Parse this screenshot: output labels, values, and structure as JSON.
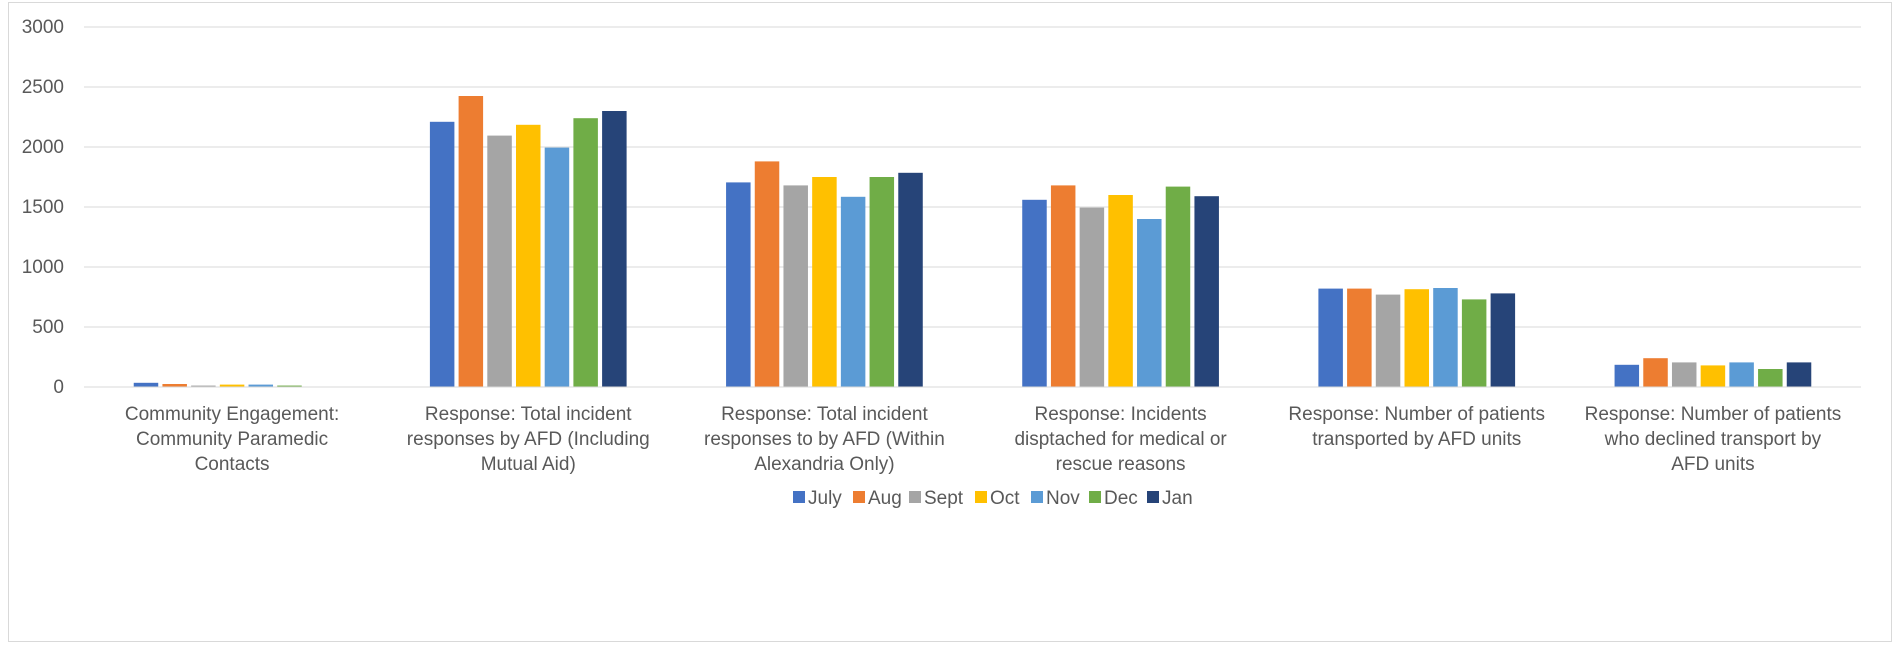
{
  "chart_data": {
    "type": "bar",
    "title": "",
    "xlabel": "",
    "ylabel": "",
    "ylim": [
      0,
      3000
    ],
    "yticks": [
      0,
      500,
      1000,
      1500,
      2000,
      2500,
      3000
    ],
    "grid": true,
    "legend_position": "bottom",
    "categories": [
      [
        "Community Engagement:",
        "Community Paramedic",
        "Contacts"
      ],
      [
        "Response: Total incident",
        "responses by AFD (Including",
        "Mutual Aid)"
      ],
      [
        "Response: Total incident",
        "responses to by AFD (Within",
        "Alexandria Only)"
      ],
      [
        "Response: Incidents",
        "disptached for medical or",
        "rescue reasons"
      ],
      [
        "Response: Number of patients",
        "transported by AFD units"
      ],
      [
        "Response: Number of patients",
        "who declined transport by",
        "AFD units"
      ]
    ],
    "series": [
      {
        "name": "July",
        "color": "#4472c4",
        "values": [
          35,
          2210,
          1705,
          1560,
          820,
          185
        ]
      },
      {
        "name": "Aug",
        "color": "#ed7d31",
        "values": [
          25,
          2425,
          1880,
          1680,
          820,
          240
        ]
      },
      {
        "name": "Sept",
        "color": "#a5a5a5",
        "values": [
          12,
          2095,
          1680,
          1495,
          770,
          205
        ]
      },
      {
        "name": "Oct",
        "color": "#ffc000",
        "values": [
          20,
          2185,
          1750,
          1600,
          815,
          180
        ]
      },
      {
        "name": "Nov",
        "color": "#5b9bd5",
        "values": [
          20,
          1995,
          1585,
          1400,
          825,
          205
        ]
      },
      {
        "name": "Dec",
        "color": "#70ad47",
        "values": [
          12,
          2240,
          1750,
          1670,
          730,
          150
        ]
      },
      {
        "name": "Jan",
        "color": "#264478",
        "values": [
          0,
          2300,
          1785,
          1590,
          780,
          205
        ]
      }
    ]
  }
}
